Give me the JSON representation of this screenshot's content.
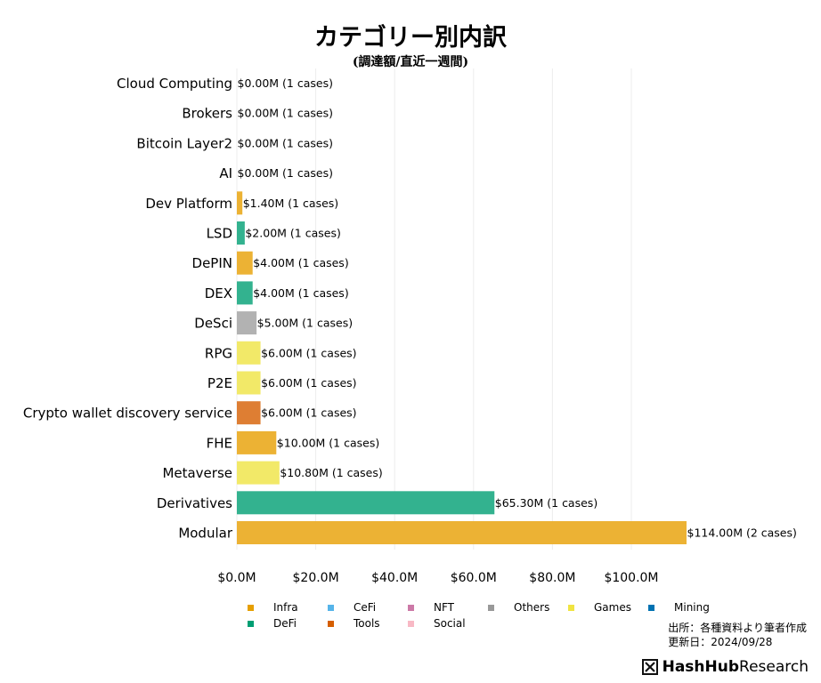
{
  "chart_data": {
    "type": "bar",
    "orientation": "horizontal",
    "title": "カテゴリー別内訳",
    "subtitle": "(調達額/直近一週間)",
    "categories": [
      "Cloud Computing",
      "Brokers",
      "Bitcoin Layer2",
      "AI",
      "Dev Platform",
      "LSD",
      "DePIN",
      "DEX",
      "DeSci",
      "RPG",
      "P2E",
      "Crypto wallet discovery service",
      "FHE",
      "Metaverse",
      "Derivatives",
      "Modular"
    ],
    "values": [
      0.0,
      0.0,
      0.0,
      0.0,
      1.4,
      2.0,
      4.0,
      4.0,
      5.0,
      6.0,
      6.0,
      6.0,
      10.0,
      10.8,
      65.3,
      114.0
    ],
    "bar_labels": [
      "$0.00M (1 cases)",
      "$0.00M (1 cases)",
      "$0.00M (1 cases)",
      "$0.00M (1 cases)",
      "$1.40M (1 cases)",
      "$2.00M (1 cases)",
      "$4.00M (1 cases)",
      "$4.00M (1 cases)",
      "$5.00M (1 cases)",
      "$6.00M (1 cases)",
      "$6.00M (1 cases)",
      "$6.00M (1 cases)",
      "$10.00M (1 cases)",
      "$10.80M (1 cases)",
      "$65.30M (1 cases)",
      "$114.00M (2 cases)"
    ],
    "groups": [
      "Infra",
      "Infra",
      "Infra",
      "Infra",
      "Infra",
      "DeFi",
      "Infra",
      "DeFi",
      "Others",
      "Games",
      "Games",
      "Tools",
      "Infra",
      "Games",
      "DeFi",
      "Infra"
    ],
    "xlim": [
      0,
      114
    ],
    "xticks": [
      0,
      20,
      40,
      60,
      80,
      100
    ],
    "xtick_labels": [
      "$0.0M",
      "$20.0M",
      "$40.0M",
      "$60.0M",
      "$80.0M",
      "$100.0M"
    ],
    "grid": true,
    "legend_placement": "bottom",
    "legend": [
      {
        "name": "Infra",
        "color": "#E69F00"
      },
      {
        "name": "CeFi",
        "color": "#56B4E9"
      },
      {
        "name": "NFT",
        "color": "#CC79A7"
      },
      {
        "name": "Others",
        "color": "#999999"
      },
      {
        "name": "Games",
        "color": "#F0E442"
      },
      {
        "name": "Mining",
        "color": "#0072B2"
      },
      {
        "name": "DeFi",
        "color": "#009E73"
      },
      {
        "name": "Tools",
        "color": "#D55E00"
      },
      {
        "name": "Social",
        "color": "#F8B9C5"
      }
    ],
    "bar_colors": {
      "Infra": "#ECB234",
      "DeFi": "#33B28F",
      "Others": "#B2B2B2",
      "Games": "#F2E968",
      "Tools": "#DE7E33"
    }
  },
  "footer": {
    "source_line": "出所：各種資料より筆者作成",
    "updated_line": "更新日：2024/09/28",
    "brand_bold": "HashHub",
    "brand_rest": "Research"
  }
}
